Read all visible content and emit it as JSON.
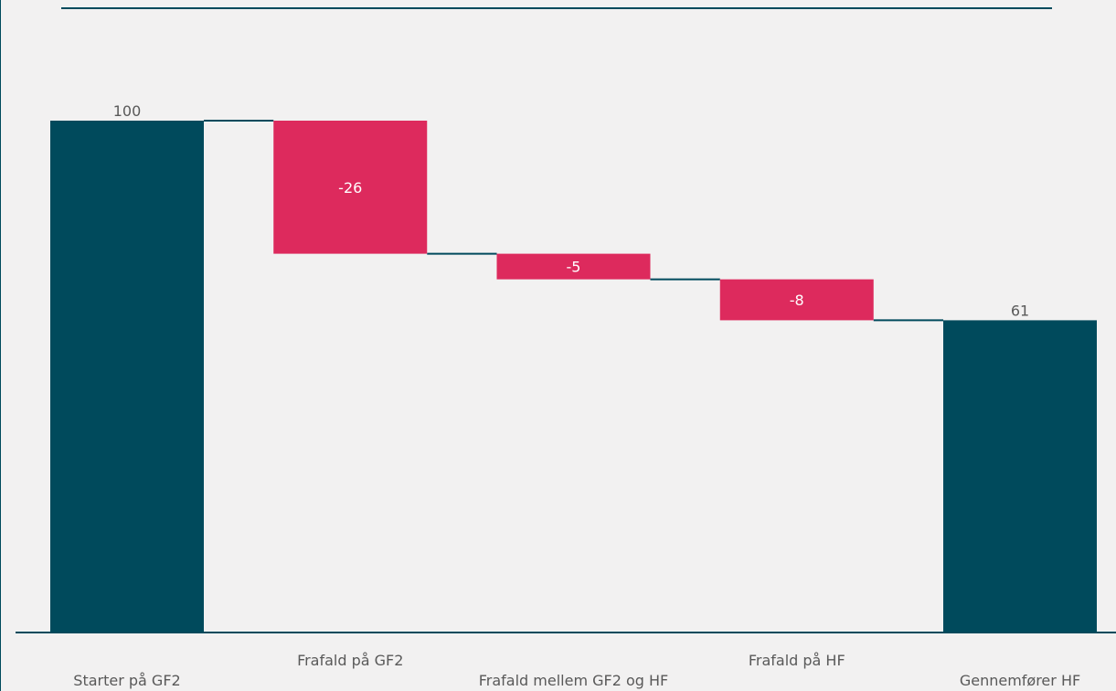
{
  "chart_data": {
    "type": "bar",
    "subtype": "waterfall",
    "categories": [
      "Starter på GF2",
      "Frafald på GF2",
      "Frafald mellem GF2 og HF",
      "Frafald på HF",
      "Gennemfører HF"
    ],
    "values": [
      100,
      -26,
      -5,
      -8,
      61
    ],
    "kinds": [
      "total",
      "delta",
      "delta",
      "delta",
      "total"
    ],
    "data_labels": [
      "100",
      "-26",
      "-5",
      "-8",
      "61"
    ],
    "title": "",
    "xlabel": "",
    "ylabel": "",
    "ylim": [
      0,
      100
    ],
    "grid": false,
    "legend": "none",
    "colors": {
      "total": "#004a5c",
      "delta": "#dd2a5d",
      "connector": "#004a5c",
      "axis": "#004a5c",
      "label_dark": "#595959",
      "label_light": "#ffffff"
    }
  }
}
